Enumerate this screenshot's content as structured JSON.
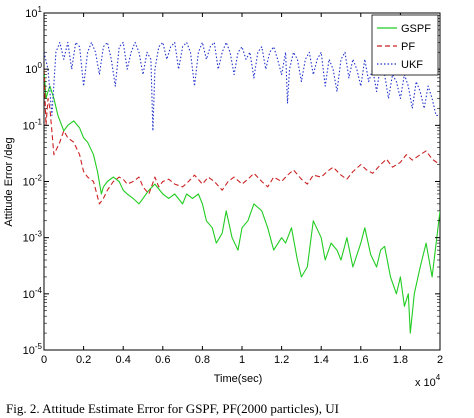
{
  "chart_data": {
    "type": "line",
    "title": "",
    "xlabel": "Time(sec)",
    "ylabel": "Attitude Error  /deg",
    "x_exponent_label": "x 10",
    "x_exponent_power": "4",
    "xlim": [
      0,
      2
    ],
    "ylim_log10": [
      -5,
      1
    ],
    "yscale": "log",
    "grid": false,
    "legend_position": "top-right",
    "x_ticks": [
      0,
      0.2,
      0.4,
      0.6,
      0.8,
      1,
      1.2,
      1.4,
      1.6,
      1.8,
      2
    ],
    "x_tick_labels": [
      "0",
      "0.2",
      "0.4",
      "0.6",
      "0.8",
      "1",
      "1.2",
      "1.4",
      "1.6",
      "1.8",
      "2"
    ],
    "y_tick_exponents": [
      -5,
      -4,
      -3,
      -2,
      -1,
      0,
      1
    ],
    "y_tick_base": "10",
    "series": [
      {
        "name": "GSPF",
        "color": "#22cc22",
        "dash": "solid",
        "x": [
          0,
          0.01,
          0.02,
          0.03,
          0.05,
          0.07,
          0.1,
          0.12,
          0.15,
          0.18,
          0.2,
          0.22,
          0.25,
          0.27,
          0.29,
          0.3,
          0.32,
          0.35,
          0.38,
          0.4,
          0.42,
          0.45,
          0.48,
          0.5,
          0.53,
          0.56,
          0.6,
          0.63,
          0.66,
          0.7,
          0.72,
          0.75,
          0.78,
          0.8,
          0.82,
          0.85,
          0.87,
          0.9,
          0.92,
          0.95,
          0.98,
          1.0,
          1.03,
          1.06,
          1.1,
          1.13,
          1.16,
          1.2,
          1.22,
          1.25,
          1.28,
          1.3,
          1.33,
          1.36,
          1.4,
          1.42,
          1.45,
          1.48,
          1.5,
          1.53,
          1.56,
          1.6,
          1.62,
          1.65,
          1.68,
          1.7,
          1.72,
          1.75,
          1.78,
          1.8,
          1.82,
          1.84,
          1.85,
          1.87,
          1.9,
          1.93,
          1.96,
          2.0
        ],
        "y": [
          1.0,
          0.3,
          0.4,
          0.5,
          0.3,
          0.15,
          0.08,
          0.1,
          0.12,
          0.09,
          0.06,
          0.05,
          0.03,
          0.015,
          0.006,
          0.008,
          0.01,
          0.012,
          0.01,
          0.007,
          0.006,
          0.005,
          0.004,
          0.005,
          0.007,
          0.009,
          0.006,
          0.005,
          0.006,
          0.004,
          0.006,
          0.005,
          0.006,
          0.004,
          0.002,
          0.0015,
          0.0008,
          0.0012,
          0.003,
          0.001,
          0.0006,
          0.0015,
          0.002,
          0.004,
          0.003,
          0.0015,
          0.0006,
          0.001,
          0.0008,
          0.0015,
          0.0004,
          0.0002,
          0.0003,
          0.002,
          0.001,
          0.0004,
          0.0008,
          0.0006,
          0.0004,
          0.001,
          0.0003,
          0.0008,
          0.0015,
          0.0005,
          0.0003,
          0.0006,
          0.0007,
          0.0002,
          0.0001,
          0.0002,
          6e-05,
          0.0001,
          2e-05,
          0.0001,
          0.0003,
          0.0008,
          0.0002,
          0.003
        ]
      },
      {
        "name": "PF",
        "color": "#cc2222",
        "dash": "dashed",
        "x": [
          0,
          0.01,
          0.02,
          0.03,
          0.05,
          0.08,
          0.1,
          0.12,
          0.15,
          0.18,
          0.2,
          0.22,
          0.25,
          0.28,
          0.3,
          0.32,
          0.35,
          0.38,
          0.4,
          0.42,
          0.45,
          0.48,
          0.5,
          0.53,
          0.56,
          0.58,
          0.6,
          0.63,
          0.66,
          0.7,
          0.73,
          0.76,
          0.8,
          0.83,
          0.86,
          0.9,
          0.93,
          0.96,
          1.0,
          1.03,
          1.06,
          1.1,
          1.13,
          1.16,
          1.2,
          1.23,
          1.26,
          1.3,
          1.33,
          1.36,
          1.4,
          1.43,
          1.46,
          1.5,
          1.53,
          1.56,
          1.6,
          1.63,
          1.66,
          1.7,
          1.73,
          1.76,
          1.8,
          1.83,
          1.86,
          1.9,
          1.93,
          1.96,
          2.0
        ],
        "y": [
          1.0,
          0.1,
          0.3,
          0.2,
          0.03,
          0.05,
          0.08,
          0.06,
          0.05,
          0.03,
          0.015,
          0.012,
          0.01,
          0.004,
          0.005,
          0.007,
          0.01,
          0.012,
          0.011,
          0.009,
          0.01,
          0.012,
          0.008,
          0.006,
          0.012,
          0.008,
          0.01,
          0.011,
          0.009,
          0.008,
          0.01,
          0.013,
          0.009,
          0.012,
          0.01,
          0.007,
          0.01,
          0.012,
          0.009,
          0.011,
          0.014,
          0.01,
          0.008,
          0.012,
          0.01,
          0.013,
          0.016,
          0.011,
          0.009,
          0.013,
          0.012,
          0.015,
          0.018,
          0.013,
          0.011,
          0.015,
          0.02,
          0.016,
          0.014,
          0.02,
          0.025,
          0.018,
          0.022,
          0.03,
          0.024,
          0.03,
          0.035,
          0.025,
          0.02
        ]
      },
      {
        "name": "UKF",
        "color": "#2233cc",
        "dash": "dotted",
        "x": [
          0,
          0.02,
          0.04,
          0.06,
          0.08,
          0.1,
          0.12,
          0.14,
          0.16,
          0.18,
          0.2,
          0.22,
          0.24,
          0.26,
          0.28,
          0.3,
          0.32,
          0.34,
          0.36,
          0.38,
          0.4,
          0.42,
          0.44,
          0.46,
          0.48,
          0.5,
          0.52,
          0.54,
          0.55,
          0.56,
          0.58,
          0.6,
          0.62,
          0.64,
          0.66,
          0.68,
          0.7,
          0.72,
          0.74,
          0.76,
          0.78,
          0.8,
          0.82,
          0.84,
          0.86,
          0.88,
          0.9,
          0.92,
          0.94,
          0.96,
          0.98,
          1.0,
          1.02,
          1.04,
          1.06,
          1.08,
          1.1,
          1.12,
          1.14,
          1.16,
          1.18,
          1.2,
          1.22,
          1.23,
          1.24,
          1.26,
          1.28,
          1.3,
          1.32,
          1.34,
          1.36,
          1.38,
          1.4,
          1.42,
          1.44,
          1.46,
          1.48,
          1.5,
          1.52,
          1.54,
          1.56,
          1.58,
          1.6,
          1.62,
          1.64,
          1.66,
          1.68,
          1.7,
          1.72,
          1.74,
          1.76,
          1.78,
          1.8,
          1.82,
          1.84,
          1.86,
          1.88,
          1.9,
          1.92,
          1.94,
          1.96,
          1.98,
          2.0
        ],
        "y": [
          2.0,
          1.0,
          0.15,
          2.0,
          3.0,
          1.5,
          3.0,
          1.0,
          3.0,
          2.5,
          0.5,
          2.0,
          3.0,
          2.0,
          0.8,
          2.5,
          3.0,
          1.5,
          0.5,
          2.5,
          3.0,
          1.0,
          2.0,
          3.0,
          2.0,
          0.8,
          2.0,
          1.5,
          0.08,
          1.0,
          2.5,
          3.0,
          1.5,
          2.5,
          3.0,
          1.0,
          2.5,
          3.0,
          2.0,
          0.5,
          2.0,
          3.0,
          1.5,
          2.5,
          3.0,
          1.0,
          2.0,
          3.0,
          2.0,
          0.8,
          2.0,
          2.5,
          1.5,
          2.0,
          0.7,
          2.0,
          2.5,
          1.0,
          2.0,
          2.5,
          1.5,
          0.8,
          2.0,
          0.25,
          1.0,
          2.0,
          1.5,
          0.6,
          1.5,
          2.0,
          0.8,
          1.5,
          2.0,
          0.5,
          1.5,
          1.0,
          0.4,
          1.5,
          2.0,
          0.7,
          1.5,
          1.0,
          0.5,
          1.5,
          0.6,
          1.0,
          0.4,
          1.2,
          0.8,
          0.3,
          0.8,
          0.6,
          0.3,
          0.8,
          0.5,
          0.2,
          0.6,
          0.4,
          0.2,
          0.5,
          0.3,
          0.15,
          0.15
        ]
      }
    ]
  },
  "caption": "Fig. 2.    Attitude Estimate Error for GSPF, PF(2000 particles), UI"
}
